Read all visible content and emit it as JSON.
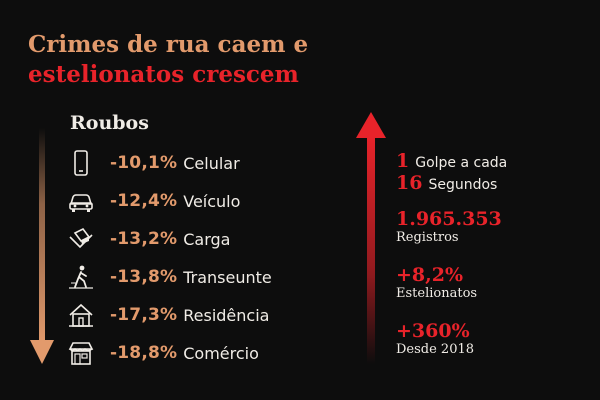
{
  "title": {
    "line1": "Crimes de rua caem e",
    "line2": "estelionatos crescem"
  },
  "colors": {
    "background": "#0d0d0d",
    "accent_orange": "#e29a6c",
    "accent_red": "#e8232a",
    "text": "#f0ece6"
  },
  "roubos": {
    "heading": "Roubos",
    "items": [
      {
        "icon": "phone-icon",
        "value": "-10,1%",
        "label": "Celular"
      },
      {
        "icon": "car-icon",
        "value": "-12,4%",
        "label": "Veículo"
      },
      {
        "icon": "cargo-icon",
        "value": "-13,2%",
        "label": "Carga"
      },
      {
        "icon": "pedestrian-icon",
        "value": "-13,8%",
        "label": "Transeunte"
      },
      {
        "icon": "house-icon",
        "value": "-17,3%",
        "label": "Residência"
      },
      {
        "icon": "store-icon",
        "value": "-18,8%",
        "label": "Comércio"
      }
    ]
  },
  "golpes": {
    "n1": "1",
    "t1": "Golpe a cada",
    "n2": "16",
    "t2": "Segundos",
    "registros_value": "1.965.353",
    "registros_label": "Registros",
    "estelionatos_value": "+8,2%",
    "estelionatos_label": "Estelionatos",
    "desde_value": "+360%",
    "desde_label": "Desde 2018"
  }
}
